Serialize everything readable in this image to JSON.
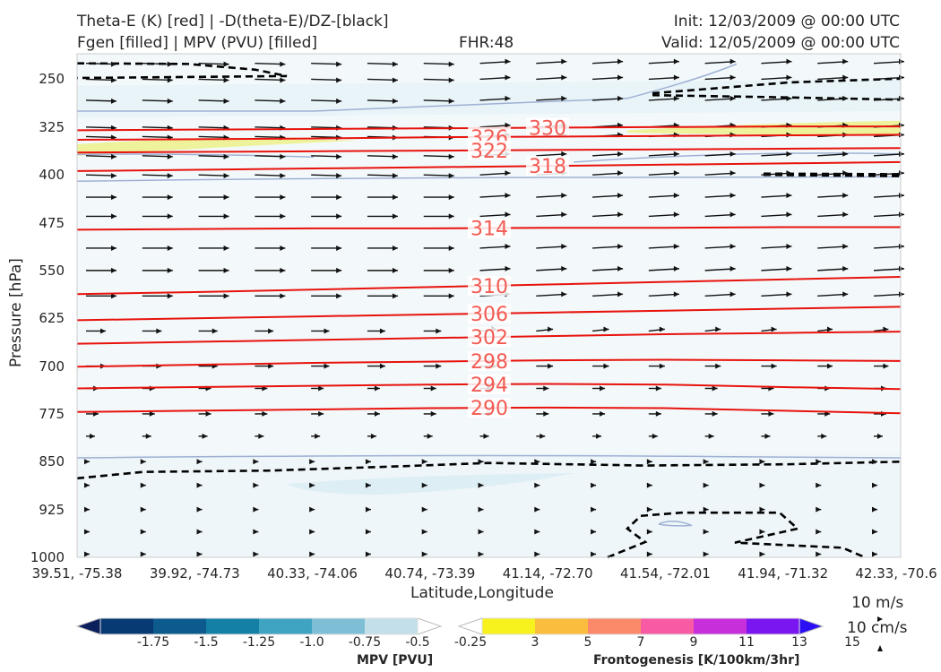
{
  "header": {
    "line1_left": "Theta-E (K) [red] | -D(theta-E)/DZ-[black]",
    "line2_left": "Fgen [filled] | MPV (PVU) [filled]",
    "fhr": "FHR:48",
    "init": "Init: 12/03/2009 @ 00:00 UTC",
    "valid": "Valid: 12/05/2009 @ 00:00 UTC"
  },
  "wind_key": {
    "label1": "10 m/s",
    "label2": "10 cm/s"
  },
  "chart_data": {
    "type": "cross-section",
    "xlabel": "Latitude,Longitude",
    "ylabel": "Pressure [hPa]",
    "x_ticks": [
      "39.51, -75.38",
      "39.92, -74.73",
      "40.33, -74.06",
      "40.74, -73.39",
      "41.14, -72.70",
      "41.54, -72.01",
      "41.94, -71.32",
      "42.33, -70.6"
    ],
    "y_ticks": [
      250,
      325,
      400,
      475,
      550,
      625,
      700,
      775,
      850,
      925,
      1000
    ],
    "ylim": [
      1000,
      210
    ],
    "theta_e_contours": [
      {
        "label": "330",
        "p": [
          330,
          329,
          328,
          327,
          326,
          325,
          324,
          324
        ]
      },
      {
        "label": "326",
        "p": [
          345,
          344,
          343,
          341,
          340,
          339,
          338,
          337
        ]
      },
      {
        "label": "322",
        "p": [
          365,
          364,
          363,
          362,
          361,
          360,
          359,
          358
        ]
      },
      {
        "label": "318",
        "p": [
          394,
          392,
          390,
          388,
          386,
          384,
          382,
          380
        ]
      },
      {
        "label": "314",
        "p": [
          486,
          485,
          484,
          484,
          483,
          483,
          482,
          482
        ]
      },
      {
        "label": "310",
        "p": [
          587,
          584,
          580,
          576,
          572,
          568,
          564,
          560
        ]
      },
      {
        "label": "306",
        "p": [
          628,
          625,
          622,
          619,
          616,
          613,
          610,
          607
        ]
      },
      {
        "label": "302",
        "p": [
          665,
          662,
          659,
          656,
          653,
          650,
          648,
          646
        ]
      },
      {
        "label": "298",
        "p": [
          701,
          698,
          695,
          693,
          691,
          690,
          691,
          692
        ]
      },
      {
        "label": "294",
        "p": [
          735,
          733,
          731,
          729,
          728,
          729,
          733,
          736
        ]
      },
      {
        "label": "290",
        "p": [
          772,
          770,
          768,
          766,
          765,
          766,
          770,
          774
        ]
      }
    ],
    "colorbars": [
      {
        "label": "MPV [PVU]",
        "ticks": [
          "-1.75",
          "-1.5",
          "-1.25",
          "-1.0",
          "-0.75",
          "-0.5",
          "-0.25"
        ],
        "colors": [
          "#0b1f5c",
          "#073a73",
          "#0d5a8e",
          "#1580a6",
          "#3fa3c2",
          "#7fbfd6",
          "#c3e0ea",
          "#ffffff"
        ]
      },
      {
        "label": "Frontogenesis [K/100km/3hr]",
        "ticks": [
          "3",
          "5",
          "7",
          "9",
          "11",
          "13",
          "15"
        ],
        "colors": [
          "#ffffff",
          "#f7f21e",
          "#fbbd3e",
          "#fb8a6a",
          "#f85ba4",
          "#c62fd9",
          "#7a16ef",
          "#2c10f5"
        ]
      }
    ],
    "grid": false
  }
}
